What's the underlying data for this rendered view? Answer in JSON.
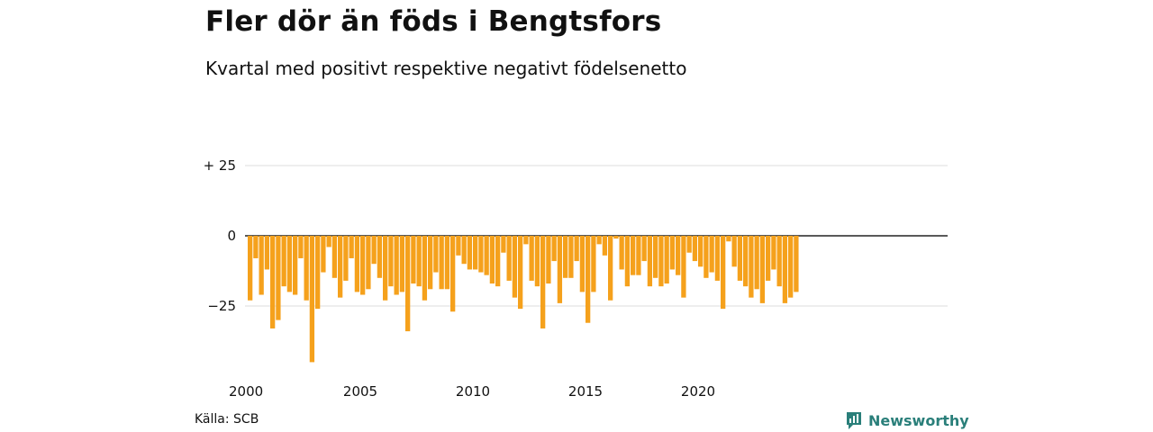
{
  "title": "Fler dör än föds i Bengtsfors",
  "subtitle": "Kvartal med positivt respektive negativt födelsenetto",
  "source": "Källa: SCB",
  "brand": {
    "name": "Newsworthy",
    "icon": "newsworthy-logo-icon",
    "color": "#2a7f7a"
  },
  "colors": {
    "bar": "#f5a11c",
    "grid": "#dddddd",
    "zero": "#222222"
  },
  "chart_data": {
    "type": "bar",
    "x_start_year": 2000,
    "periods_per_year": 4,
    "ylim": [
      -45,
      42
    ],
    "y_ticks": [
      {
        "value": 25,
        "label": "+ 25"
      },
      {
        "value": 0,
        "label": "0"
      },
      {
        "value": -25,
        "label": "−25"
      }
    ],
    "x_ticks": [
      {
        "year": 2000,
        "label": "2000"
      },
      {
        "year": 2005,
        "label": "2005"
      },
      {
        "year": 2010,
        "label": "2010"
      },
      {
        "year": 2015,
        "label": "2015"
      },
      {
        "year": 2020,
        "label": "2020"
      }
    ],
    "values": [
      -23,
      -8,
      -21,
      -12,
      -33,
      -30,
      -18,
      -20,
      -21,
      -8,
      -23,
      -45,
      -26,
      -13,
      -4,
      -15,
      -22,
      -16,
      -8,
      -20,
      -21,
      -19,
      -10,
      -15,
      -23,
      -18,
      -21,
      -20,
      -34,
      -17,
      -18,
      -23,
      -19,
      -13,
      -19,
      -19,
      -27,
      -7,
      -10,
      -12,
      -12,
      -13,
      -14,
      -17,
      -18,
      -6,
      -16,
      -22,
      -26,
      -3,
      -16,
      -18,
      -33,
      -17,
      -9,
      -24,
      -15,
      -15,
      -9,
      -20,
      -31,
      -20,
      -3,
      -7,
      -23,
      -1,
      -12,
      -18,
      -14,
      -14,
      -9,
      -18,
      -15,
      -18,
      -17,
      -12,
      -14,
      -22,
      -6,
      -9,
      -11,
      -15,
      -13,
      -16,
      -26,
      -2,
      -11,
      -16,
      -18,
      -22,
      -19,
      -24,
      -16,
      -12,
      -18,
      -24,
      -22,
      -20
    ]
  }
}
